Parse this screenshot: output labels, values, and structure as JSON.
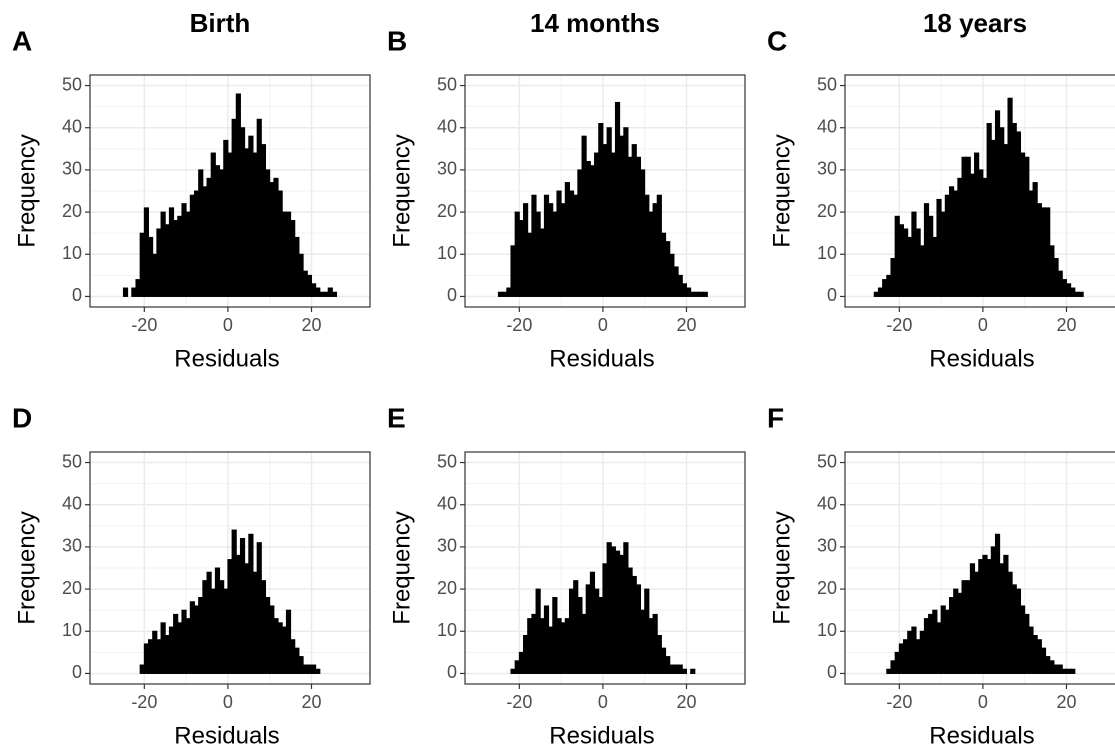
{
  "chart_data": [
    {
      "type": "histogram",
      "panel": "A",
      "title": "Birth",
      "xlabel": "Residuals",
      "ylabel": "Frequency",
      "color": "#000000",
      "grid": true,
      "xlim": [
        -33,
        34
      ],
      "xticks": [
        -20,
        0,
        20
      ],
      "ylim": [
        -2.5,
        52.5
      ],
      "yticks": [
        0,
        10,
        20,
        30,
        40,
        50
      ],
      "bins": [
        -30,
        -29,
        -28,
        -27,
        -26,
        -25,
        -24,
        -23,
        -22,
        -21,
        -20,
        -19,
        -18,
        -17,
        -16,
        -15,
        -14,
        -13,
        -12,
        -11,
        -10,
        -9,
        -8,
        -7,
        -6,
        -5,
        -4,
        -3,
        -2,
        -1,
        0,
        1,
        2,
        3,
        4,
        5,
        6,
        7,
        8,
        9,
        10,
        11,
        12,
        13,
        14,
        15,
        16,
        17,
        18,
        19,
        20,
        21,
        22,
        23,
        24,
        25,
        26,
        27,
        28,
        29,
        30
      ],
      "values": [
        0,
        0,
        0,
        0,
        0,
        2,
        0,
        2,
        4,
        15,
        21,
        14,
        10,
        16,
        20,
        17,
        21,
        18,
        19,
        22,
        20,
        24,
        25,
        30,
        26,
        28,
        34,
        31,
        30,
        37,
        34,
        42,
        48,
        40,
        35,
        38,
        34,
        42,
        36,
        30,
        27,
        28,
        25,
        20,
        20,
        18,
        14,
        10,
        6,
        5,
        3,
        2,
        1,
        1,
        2,
        1,
        0,
        0,
        0,
        0
      ]
    },
    {
      "type": "histogram",
      "panel": "B",
      "title": "14 months",
      "xlabel": "Residuals",
      "ylabel": "Frequency",
      "color": "#000000",
      "grid": true,
      "xlim": [
        -33,
        34
      ],
      "xticks": [
        -20,
        0,
        20
      ],
      "ylim": [
        -2.5,
        52.5
      ],
      "yticks": [
        0,
        10,
        20,
        30,
        40,
        50
      ],
      "bins": [
        -30,
        -29,
        -28,
        -27,
        -26,
        -25,
        -24,
        -23,
        -22,
        -21,
        -20,
        -19,
        -18,
        -17,
        -16,
        -15,
        -14,
        -13,
        -12,
        -11,
        -10,
        -9,
        -8,
        -7,
        -6,
        -5,
        -4,
        -3,
        -2,
        -1,
        0,
        1,
        2,
        3,
        4,
        5,
        6,
        7,
        8,
        9,
        10,
        11,
        12,
        13,
        14,
        15,
        16,
        17,
        18,
        19,
        20,
        21,
        22,
        23,
        24,
        25,
        26,
        27,
        28,
        29,
        30
      ],
      "values": [
        0,
        0,
        0,
        0,
        0,
        1,
        1,
        2,
        12,
        20,
        18,
        22,
        15,
        24,
        20,
        16,
        24,
        22,
        20,
        25,
        22,
        27,
        25,
        24,
        30,
        38,
        32,
        31,
        34,
        41,
        36,
        40,
        34,
        46,
        38,
        40,
        33,
        36,
        33,
        30,
        24,
        20,
        22,
        24,
        15,
        13,
        10,
        7,
        5,
        3,
        2,
        1,
        1,
        1,
        1,
        0,
        0,
        0,
        0,
        0
      ]
    },
    {
      "type": "histogram",
      "panel": "C",
      "title": "18 years",
      "xlabel": "Residuals",
      "ylabel": "Frequency",
      "color": "#000000",
      "grid": true,
      "xlim": [
        -33,
        34
      ],
      "xticks": [
        -20,
        0,
        20
      ],
      "ylim": [
        -2.5,
        52.5
      ],
      "yticks": [
        0,
        10,
        20,
        30,
        40,
        50
      ],
      "bins": [
        -30,
        -29,
        -28,
        -27,
        -26,
        -25,
        -24,
        -23,
        -22,
        -21,
        -20,
        -19,
        -18,
        -17,
        -16,
        -15,
        -14,
        -13,
        -12,
        -11,
        -10,
        -9,
        -8,
        -7,
        -6,
        -5,
        -4,
        -3,
        -2,
        -1,
        0,
        1,
        2,
        3,
        4,
        5,
        6,
        7,
        8,
        9,
        10,
        11,
        12,
        13,
        14,
        15,
        16,
        17,
        18,
        19,
        20,
        21,
        22,
        23,
        24,
        25,
        26,
        27,
        28,
        29,
        30
      ],
      "values": [
        0,
        0,
        0,
        0,
        1,
        2,
        4,
        5,
        9,
        19,
        17,
        16,
        14,
        20,
        16,
        12,
        22,
        19,
        14,
        23,
        20,
        24,
        26,
        25,
        28,
        33,
        33,
        29,
        34,
        30,
        28,
        41,
        37,
        44,
        40,
        36,
        47,
        41,
        39,
        34,
        33,
        25,
        27,
        22,
        21,
        21,
        12,
        9,
        6,
        4,
        3,
        2,
        1,
        1,
        0,
        0,
        0,
        0,
        0,
        0
      ]
    },
    {
      "type": "histogram",
      "panel": "D",
      "xlabel": "Residuals",
      "ylabel": "Frequency",
      "color": "#000000",
      "grid": true,
      "xlim": [
        -33,
        34
      ],
      "xticks": [
        -20,
        0,
        20
      ],
      "ylim": [
        -2.5,
        52.5
      ],
      "yticks": [
        0,
        10,
        20,
        30,
        40,
        50
      ],
      "bins": [
        -30,
        -29,
        -28,
        -27,
        -26,
        -25,
        -24,
        -23,
        -22,
        -21,
        -20,
        -19,
        -18,
        -17,
        -16,
        -15,
        -14,
        -13,
        -12,
        -11,
        -10,
        -9,
        -8,
        -7,
        -6,
        -5,
        -4,
        -3,
        -2,
        -1,
        0,
        1,
        2,
        3,
        4,
        5,
        6,
        7,
        8,
        9,
        10,
        11,
        12,
        13,
        14,
        15,
        16,
        17,
        18,
        19,
        20,
        21,
        22,
        23,
        24,
        25,
        26,
        27,
        28,
        29,
        30
      ],
      "values": [
        0,
        0,
        0,
        0,
        0,
        0,
        0,
        0,
        0,
        2,
        7,
        8,
        10,
        8,
        12,
        9,
        11,
        14,
        12,
        15,
        13,
        17,
        16,
        18,
        22,
        24,
        20,
        25,
        22,
        20,
        27,
        34,
        28,
        32,
        26,
        33,
        24,
        31,
        22,
        18,
        16,
        13,
        12,
        11,
        15,
        8,
        6,
        4,
        2,
        2,
        2,
        1,
        0,
        0,
        0,
        0,
        0,
        0,
        0,
        0
      ]
    },
    {
      "type": "histogram",
      "panel": "E",
      "xlabel": "Residuals",
      "ylabel": "Frequency",
      "color": "#000000",
      "grid": true,
      "xlim": [
        -33,
        34
      ],
      "xticks": [
        -20,
        0,
        20
      ],
      "ylim": [
        -2.5,
        52.5
      ],
      "yticks": [
        0,
        10,
        20,
        30,
        40,
        50
      ],
      "bins": [
        -30,
        -29,
        -28,
        -27,
        -26,
        -25,
        -24,
        -23,
        -22,
        -21,
        -20,
        -19,
        -18,
        -17,
        -16,
        -15,
        -14,
        -13,
        -12,
        -11,
        -10,
        -9,
        -8,
        -7,
        -6,
        -5,
        -4,
        -3,
        -2,
        -1,
        0,
        1,
        2,
        3,
        4,
        5,
        6,
        7,
        8,
        9,
        10,
        11,
        12,
        13,
        14,
        15,
        16,
        17,
        18,
        19,
        20,
        21,
        22,
        23,
        24,
        25,
        26,
        27,
        28,
        29,
        30
      ],
      "values": [
        0,
        0,
        0,
        0,
        0,
        0,
        0,
        0,
        1,
        3,
        5,
        9,
        13,
        14,
        20,
        13,
        16,
        11,
        18,
        13,
        12,
        13,
        20,
        22,
        18,
        14,
        21,
        24,
        20,
        18,
        26,
        31,
        30,
        29,
        28,
        31,
        25,
        23,
        21,
        15,
        20,
        13,
        14,
        9,
        6,
        4,
        2,
        2,
        2,
        1,
        0,
        1,
        0,
        0,
        0,
        0,
        0,
        0,
        0,
        0
      ]
    },
    {
      "type": "histogram",
      "panel": "F",
      "xlabel": "Residuals",
      "ylabel": "Frequency",
      "color": "#000000",
      "grid": true,
      "xlim": [
        -33,
        34
      ],
      "xticks": [
        -20,
        0,
        20
      ],
      "ylim": [
        -2.5,
        52.5
      ],
      "yticks": [
        0,
        10,
        20,
        30,
        40,
        50
      ],
      "bins": [
        -30,
        -29,
        -28,
        -27,
        -26,
        -25,
        -24,
        -23,
        -22,
        -21,
        -20,
        -19,
        -18,
        -17,
        -16,
        -15,
        -14,
        -13,
        -12,
        -11,
        -10,
        -9,
        -8,
        -7,
        -6,
        -5,
        -4,
        -3,
        -2,
        -1,
        0,
        1,
        2,
        3,
        4,
        5,
        6,
        7,
        8,
        9,
        10,
        11,
        12,
        13,
        14,
        15,
        16,
        17,
        18,
        19,
        20,
        21,
        22,
        23,
        24,
        25,
        26,
        27,
        28,
        29,
        30
      ],
      "values": [
        0,
        0,
        0,
        0,
        0,
        0,
        0,
        1,
        3,
        5,
        7,
        8,
        10,
        11,
        8,
        10,
        13,
        14,
        15,
        12,
        16,
        15,
        18,
        20,
        19,
        22,
        22,
        26,
        24,
        27,
        28,
        27,
        30,
        33,
        26,
        28,
        24,
        21,
        20,
        16,
        14,
        11,
        9,
        8,
        6,
        4,
        3,
        2,
        2,
        1,
        1,
        1,
        0,
        0,
        0,
        0,
        0,
        0,
        0,
        0
      ]
    }
  ]
}
